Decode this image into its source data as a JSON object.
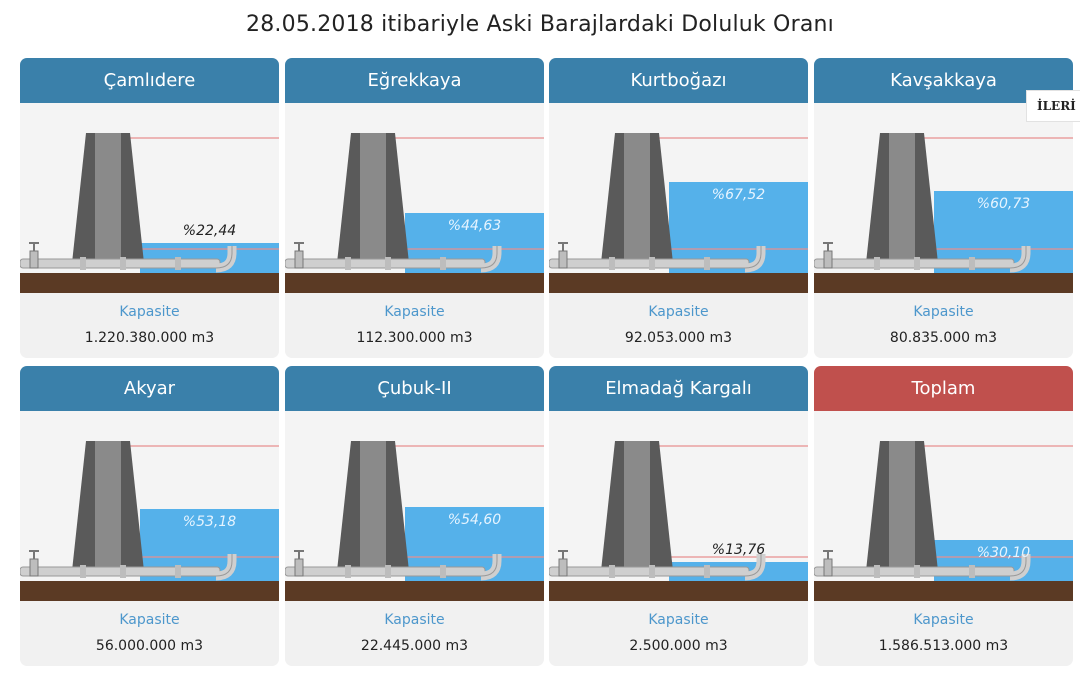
{
  "page": {
    "title": "28.05.2018 itibariyle Aski Barajlardaki Doluluk Oranı",
    "next_label": "İLERİ"
  },
  "colors": {
    "header": "#3a80aa",
    "total_header": "#c0504d",
    "water": "#55b1ea",
    "dam": "#5a5a5a",
    "soil": "#5b3a24",
    "max_line": "#e88f8f",
    "capacity_label": "#4d97cc"
  },
  "capacity_label": "Kapasite",
  "dams": [
    {
      "name": "Çamlıdere",
      "percent_text": "%22,44",
      "fill_percent": 22.44,
      "capacity": "1.220.380.000 m3",
      "total": false
    },
    {
      "name": "Eğrekkaya",
      "percent_text": "%44,63",
      "fill_percent": 44.63,
      "capacity": "112.300.000 m3",
      "total": false
    },
    {
      "name": "Kurtboğazı",
      "percent_text": "%67,52",
      "fill_percent": 67.52,
      "capacity": "92.053.000 m3",
      "total": false
    },
    {
      "name": "Kavşakkaya",
      "percent_text": "%60,73",
      "fill_percent": 60.73,
      "capacity": "80.835.000 m3",
      "total": false
    },
    {
      "name": "Akyar",
      "percent_text": "%53,18",
      "fill_percent": 53.18,
      "capacity": "56.000.000 m3",
      "total": false
    },
    {
      "name": "Çubuk-II",
      "percent_text": "%54,60",
      "fill_percent": 54.6,
      "capacity": "22.445.000 m3",
      "total": false
    },
    {
      "name": "Elmadağ Kargalı",
      "percent_text": "%13,76",
      "fill_percent": 13.76,
      "capacity": "2.500.000 m3",
      "total": false
    },
    {
      "name": "Toplam",
      "percent_text": "%30,10",
      "fill_percent": 30.1,
      "capacity": "1.586.513.000 m3",
      "total": true
    }
  ]
}
